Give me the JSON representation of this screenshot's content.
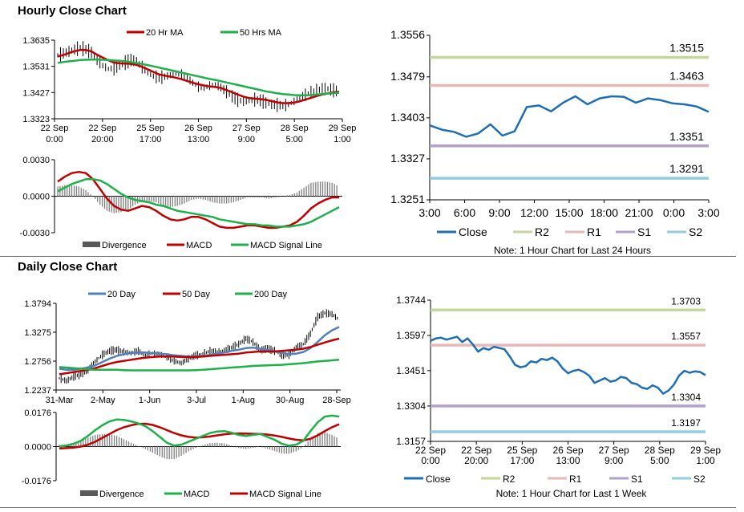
{
  "sections": {
    "hourly_title": "Hourly Close Chart",
    "daily_title": "Daily Close Chart"
  },
  "colors": {
    "red": "#c00000",
    "green": "#1db04b",
    "blue": "#4f81bd",
    "navy": "#1f6eb3",
    "divergence": "#7f7f7f",
    "r2": "#c3d69b",
    "r1": "#e6b9b8",
    "s1": "#b3a2c7",
    "s2": "#93cddd"
  },
  "chart_data": [
    {
      "id": "hourly_price",
      "type": "line",
      "legend": [
        "20 Hr MA",
        "50 Hrs MA"
      ],
      "yticks": [
        "1.3635",
        "1.3531",
        "1.3427",
        "1.3323"
      ],
      "ylim": [
        1.3323,
        1.3635
      ],
      "xticks": [
        [
          "22 Sep",
          "0:00"
        ],
        [
          "22 Sep",
          "20:00"
        ],
        [
          "25 Sep",
          "17:00"
        ],
        [
          "26 Sep",
          "13:00"
        ],
        [
          "27 Sep",
          "9:00"
        ],
        [
          "28 Sep",
          "5:00"
        ],
        [
          "29 Sep",
          "1:00"
        ]
      ],
      "close": [
        1.3575,
        1.3582,
        1.359,
        1.3598,
        1.3604,
        1.3598,
        1.3586,
        1.3556,
        1.3534,
        1.3521,
        1.3524,
        1.3534,
        1.3546,
        1.3556,
        1.355,
        1.3528,
        1.3506,
        1.3492,
        1.3486,
        1.349,
        1.3496,
        1.3502,
        1.3498,
        1.3484,
        1.3466,
        1.345,
        1.3446,
        1.3454,
        1.3458,
        1.3447,
        1.343,
        1.3412,
        1.3398,
        1.3392,
        1.3395,
        1.3399,
        1.3396,
        1.3386,
        1.338,
        1.3378,
        1.3375,
        1.338,
        1.3392,
        1.3406,
        1.3418,
        1.3428,
        1.3436,
        1.344,
        1.3442,
        1.3436,
        1.3431
      ],
      "series": [
        {
          "name": "20 Hr MA",
          "values": [
            1.357,
            1.3576,
            1.3584,
            1.3591,
            1.3596,
            1.3596,
            1.359,
            1.3577,
            1.3566,
            1.3555,
            1.3546,
            1.3543,
            1.3542,
            1.3541,
            1.3537,
            1.3529,
            1.3519,
            1.3509,
            1.3499,
            1.3494,
            1.349,
            1.3486,
            1.348,
            1.3473,
            1.3466,
            1.346,
            1.3455,
            1.3451,
            1.3449,
            1.3445,
            1.3437,
            1.3428,
            1.3419,
            1.3411,
            1.3405,
            1.3403,
            1.3401,
            1.3398,
            1.3393,
            1.3388,
            1.3385,
            1.3385,
            1.3387,
            1.3392,
            1.3399,
            1.3406,
            1.3413,
            1.3419,
            1.3424,
            1.3428,
            1.343
          ]
        },
        {
          "name": "50 Hrs MA",
          "values": [
            1.3545,
            1.3548,
            1.3551,
            1.3553,
            1.3556,
            1.3557,
            1.3558,
            1.3558,
            1.3557,
            1.3556,
            1.3554,
            1.3553,
            1.3551,
            1.3548,
            1.3544,
            1.354,
            1.3536,
            1.3531,
            1.3526,
            1.3521,
            1.3516,
            1.3511,
            1.3506,
            1.3501,
            1.3496,
            1.3491,
            1.3486,
            1.3481,
            1.3477,
            1.3472,
            1.3467,
            1.3462,
            1.3457,
            1.3452,
            1.3447,
            1.3442,
            1.3437,
            1.3432,
            1.3428,
            1.3424,
            1.3421,
            1.3419,
            1.3417,
            1.3416,
            1.3416,
            1.3417,
            1.3419,
            1.3421,
            1.3423,
            1.3425,
            1.3426
          ]
        }
      ]
    },
    {
      "id": "hourly_macd",
      "type": "line",
      "legend": [
        "Divergence",
        "MACD",
        "MACD Signal Line"
      ],
      "yticks": [
        "0.0030",
        "0.0000",
        "-0.0030"
      ],
      "ylim": [
        -0.003,
        0.003
      ],
      "series": [
        {
          "name": "MACD",
          "values": [
            0.0012,
            0.0016,
            0.0019,
            0.002,
            0.0019,
            0.0014,
            0.0006,
            -0.0002,
            -0.0008,
            -0.0011,
            -0.0012,
            -0.001,
            -0.0008,
            -0.0009,
            -0.0012,
            -0.0016,
            -0.0019,
            -0.002,
            -0.0019,
            -0.0017,
            -0.0017,
            -0.0019,
            -0.0022,
            -0.0025,
            -0.0026,
            -0.0026,
            -0.0025,
            -0.0024,
            -0.0024,
            -0.0025,
            -0.0026,
            -0.0026,
            -0.0025,
            -0.0024,
            -0.0021,
            -0.0016,
            -0.001,
            -0.0006,
            -0.0003,
            -0.0001,
            -0.0001
          ]
        },
        {
          "name": "MACD Signal Line",
          "values": [
            0.0004,
            0.0007,
            0.001,
            0.0012,
            0.0014,
            0.0014,
            0.0013,
            0.001,
            0.0006,
            0.0002,
            -0.0001,
            -0.0003,
            -0.0004,
            -0.0005,
            -0.0007,
            -0.0008,
            -0.001,
            -0.0012,
            -0.0013,
            -0.0014,
            -0.0015,
            -0.0016,
            -0.0017,
            -0.0019,
            -0.002,
            -0.0021,
            -0.0022,
            -0.0023,
            -0.0023,
            -0.0024,
            -0.0024,
            -0.0025,
            -0.0025,
            -0.0025,
            -0.0024,
            -0.0023,
            -0.0021,
            -0.0018,
            -0.0015,
            -0.0012,
            -0.0009
          ]
        }
      ]
    },
    {
      "id": "hourly_pivot",
      "type": "line",
      "legend": [
        "Close",
        "R2",
        "R1",
        "S1",
        "S2"
      ],
      "note": "Note: 1 Hour Chart for Last 24 Hours",
      "yticks": [
        "1.3556",
        "1.3479",
        "1.3403",
        "1.3327",
        "1.3251"
      ],
      "ylim": [
        1.3251,
        1.3556
      ],
      "xticks": [
        "3:00",
        "6:00",
        "9:00",
        "12:00",
        "15:00",
        "18:00",
        "21:00",
        "0:00",
        "3:00"
      ],
      "levels": [
        {
          "name": "R2",
          "value": 1.3515,
          "label": "1.3515"
        },
        {
          "name": "R1",
          "value": 1.3463,
          "label": "1.3463"
        },
        {
          "name": "S1",
          "value": 1.3351,
          "label": "1.3351"
        },
        {
          "name": "S2",
          "value": 1.3291,
          "label": "1.3291"
        }
      ],
      "series": [
        {
          "name": "Close",
          "values": [
            1.3389,
            1.3381,
            1.3377,
            1.3368,
            1.3374,
            1.3391,
            1.337,
            1.3378,
            1.3423,
            1.3426,
            1.3415,
            1.3431,
            1.3443,
            1.3428,
            1.3439,
            1.3443,
            1.3442,
            1.3431,
            1.3439,
            1.3436,
            1.343,
            1.3428,
            1.3424,
            1.3414
          ]
        }
      ]
    },
    {
      "id": "daily_price",
      "type": "line",
      "legend": [
        "20 Day",
        "50 Day",
        "200 Day"
      ],
      "yticks": [
        "1.3794",
        "1.3275",
        "1.2756",
        "1.2237"
      ],
      "ylim": [
        1.2237,
        1.3794
      ],
      "xticks": [
        "31-Mar",
        "2-May",
        "1-Jun",
        "3-Jul",
        "1-Aug",
        "30-Aug",
        "28-Sep"
      ],
      "close": [
        1.245,
        1.24,
        1.248,
        1.252,
        1.26,
        1.275,
        1.287,
        1.294,
        1.296,
        1.292,
        1.29,
        1.294,
        1.286,
        1.29,
        1.288,
        1.282,
        1.276,
        1.272,
        1.28,
        1.286,
        1.288,
        1.294,
        1.292,
        1.295,
        1.3,
        1.306,
        1.316,
        1.31,
        1.295,
        1.298,
        1.294,
        1.287,
        1.287,
        1.3,
        1.306,
        1.325,
        1.355,
        1.362,
        1.36,
        1.35
      ],
      "series": [
        {
          "name": "20 Day",
          "values": [
            1.262,
            1.26,
            1.26,
            1.262,
            1.264,
            1.268,
            1.274,
            1.28,
            1.285,
            1.288,
            1.29,
            1.291,
            1.291,
            1.29,
            1.289,
            1.288,
            1.286,
            1.285,
            1.284,
            1.284,
            1.285,
            1.287,
            1.289,
            1.291,
            1.294,
            1.296,
            1.299,
            1.3,
            1.298,
            1.296,
            1.293,
            1.291,
            1.288,
            1.289,
            1.292,
            1.299,
            1.31,
            1.322,
            1.331,
            1.337
          ]
        },
        {
          "name": "50 Day",
          "values": [
            1.252,
            1.254,
            1.256,
            1.258,
            1.26,
            1.263,
            1.267,
            1.271,
            1.274,
            1.276,
            1.278,
            1.28,
            1.282,
            1.283,
            1.284,
            1.284,
            1.284,
            1.283,
            1.283,
            1.283,
            1.284,
            1.285,
            1.286,
            1.287,
            1.288,
            1.289,
            1.291,
            1.292,
            1.293,
            1.293,
            1.293,
            1.294,
            1.295,
            1.296,
            1.298,
            1.301,
            1.305,
            1.309,
            1.313,
            1.316
          ]
        },
        {
          "name": "200 Day",
          "values": [
            1.265,
            1.264,
            1.263,
            1.262,
            1.261,
            1.26,
            1.26,
            1.26,
            1.26,
            1.2595,
            1.259,
            1.259,
            1.259,
            1.259,
            1.259,
            1.259,
            1.259,
            1.259,
            1.259,
            1.2595,
            1.26,
            1.261,
            1.262,
            1.263,
            1.264,
            1.265,
            1.266,
            1.267,
            1.2675,
            1.268,
            1.2685,
            1.269,
            1.27,
            1.271,
            1.272,
            1.2735,
            1.275,
            1.276,
            1.277,
            1.278
          ]
        }
      ]
    },
    {
      "id": "daily_macd",
      "type": "line",
      "legend": [
        "Divergence",
        "MACD",
        "MACD Signal Line"
      ],
      "yticks": [
        "0.0176",
        "0.0000",
        "-0.0176"
      ],
      "ylim": [
        -0.0176,
        0.0176
      ],
      "series": [
        {
          "name": "MACD",
          "values": [
            0.0,
            0.0005,
            0.0015,
            0.003,
            0.0055,
            0.0085,
            0.011,
            0.013,
            0.014,
            0.0138,
            0.013,
            0.012,
            0.0105,
            0.008,
            0.005,
            0.002,
            0.0005,
            0.001,
            0.0025,
            0.004,
            0.0055,
            0.007,
            0.0078,
            0.008,
            0.0072,
            0.006,
            0.0055,
            0.006,
            0.0065,
            0.005,
            0.0035,
            0.0015,
            0.0005,
            0.001,
            0.003,
            0.008,
            0.0125,
            0.0155,
            0.016,
            0.0155
          ]
        },
        {
          "name": "MACD Signal Line",
          "values": [
            -0.001,
            -0.0008,
            -0.0005,
            0.0,
            0.001,
            0.0025,
            0.0045,
            0.0065,
            0.0085,
            0.01,
            0.011,
            0.0117,
            0.0118,
            0.0112,
            0.01,
            0.0085,
            0.007,
            0.0058,
            0.005,
            0.0047,
            0.0048,
            0.0052,
            0.0058,
            0.0063,
            0.0067,
            0.0068,
            0.0067,
            0.0066,
            0.0065,
            0.0062,
            0.0057,
            0.005,
            0.0042,
            0.0035,
            0.0032,
            0.004,
            0.0058,
            0.008,
            0.01,
            0.0115
          ]
        }
      ]
    },
    {
      "id": "daily_pivot",
      "type": "line",
      "legend": [
        "Close",
        "R2",
        "R1",
        "S1",
        "S2"
      ],
      "note": "Note: 1 Hour Chart for Last 1 Week",
      "yticks": [
        "1.3744",
        "1.3597",
        "1.3451",
        "1.3304",
        "1.3157"
      ],
      "ylim": [
        1.3157,
        1.3744
      ],
      "xticks": [
        [
          "22 Sep",
          "0:00"
        ],
        [
          "22 Sep",
          "20:00"
        ],
        [
          "25 Sep",
          "17:00"
        ],
        [
          "26 Sep",
          "13:00"
        ],
        [
          "27 Sep",
          "9:00"
        ],
        [
          "28 Sep",
          "5:00"
        ],
        [
          "29 Sep",
          "1:00"
        ]
      ],
      "levels": [
        {
          "name": "R2",
          "value": 1.3703,
          "label": "1.3703"
        },
        {
          "name": "R1",
          "value": 1.3557,
          "label": "1.3557"
        },
        {
          "name": "S1",
          "value": 1.3304,
          "label": "1.3304"
        },
        {
          "name": "S2",
          "value": 1.3197,
          "label": "1.3197"
        }
      ],
      "series": [
        {
          "name": "Close",
          "values": [
            1.3575,
            1.3585,
            1.3588,
            1.358,
            1.3586,
            1.3592,
            1.357,
            1.3585,
            1.356,
            1.353,
            1.3545,
            1.3538,
            1.355,
            1.3545,
            1.354,
            1.351,
            1.3475,
            1.3465,
            1.347,
            1.349,
            1.3485,
            1.35,
            1.3495,
            1.3505,
            1.349,
            1.346,
            1.344,
            1.345,
            1.3455,
            1.3445,
            1.343,
            1.34,
            1.341,
            1.342,
            1.3405,
            1.341,
            1.3425,
            1.342,
            1.34,
            1.3395,
            1.338,
            1.3375,
            1.339,
            1.338,
            1.3355,
            1.3368,
            1.3392,
            1.343,
            1.345,
            1.3442,
            1.3448,
            1.3445,
            1.3432
          ]
        }
      ]
    }
  ]
}
